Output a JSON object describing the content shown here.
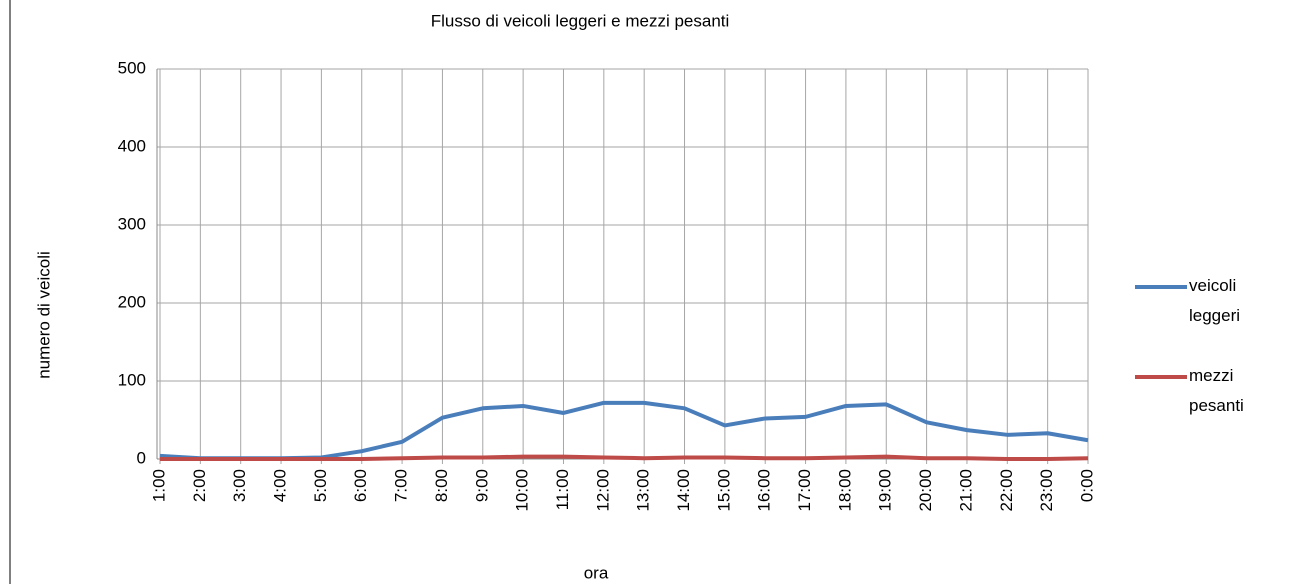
{
  "chart_data": {
    "type": "line",
    "title": "Flusso di veicoli leggeri e mezzi pesanti",
    "x_label": "ora",
    "y_label": "numero di veicoli",
    "categories": [
      "1:00",
      "2:00",
      "3:00",
      "4:00",
      "5:00",
      "6:00",
      "7:00",
      "8:00",
      "9:00",
      "10:00",
      "11:00",
      "12:00",
      "13:00",
      "14:00",
      "15:00",
      "16:00",
      "17:00",
      "18:00",
      "19:00",
      "20:00",
      "21:00",
      "22:00",
      "23:00",
      "0:00"
    ],
    "series": [
      {
        "name": "veicoli leggeri",
        "color": "#4a7ebb",
        "values": [
          4,
          1,
          1,
          1,
          2,
          10,
          22,
          53,
          65,
          68,
          59,
          72,
          72,
          65,
          43,
          52,
          54,
          68,
          70,
          47,
          37,
          31,
          33,
          24
        ]
      },
      {
        "name": "mezzi pesanti",
        "color": "#be4b48",
        "values": [
          0,
          0,
          0,
          0,
          0,
          0,
          1,
          2,
          2,
          3,
          3,
          2,
          1,
          2,
          2,
          1,
          1,
          2,
          3,
          1,
          1,
          0,
          0,
          1
        ]
      }
    ],
    "ylim": [
      0,
      500
    ],
    "yticks": [
      0,
      100,
      200,
      300,
      400,
      500
    ],
    "grid": true,
    "legend": "right"
  }
}
